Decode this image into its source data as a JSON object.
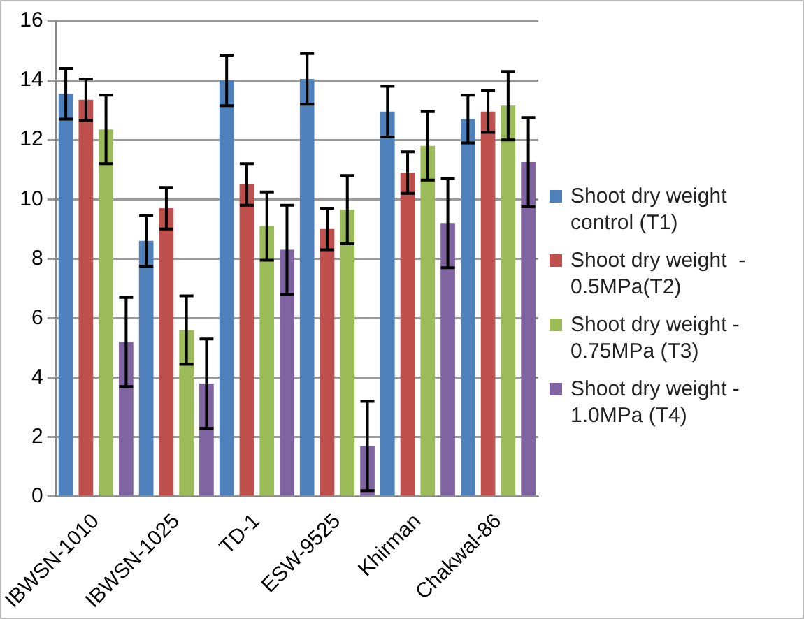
{
  "chart_data": {
    "type": "bar",
    "categories": [
      "IBWSN-1010",
      "IBWSN-1025",
      "TD-1",
      "ESW-9525",
      "Khirman",
      "Chakwal-86"
    ],
    "series": [
      {
        "name": "Shoot dry weight control (T1)",
        "color": "#4f81bd",
        "values": [
          13.55,
          8.6,
          14.0,
          14.05,
          12.95,
          12.7
        ],
        "errors": [
          0.85,
          0.85,
          0.85,
          0.85,
          0.85,
          0.8
        ]
      },
      {
        "name": "Shoot dry weight  - 0.5MPa(T2)",
        "color": "#c0504d",
        "values": [
          13.35,
          9.7,
          10.5,
          9.0,
          10.9,
          12.95
        ],
        "errors": [
          0.7,
          0.7,
          0.7,
          0.7,
          0.7,
          0.7
        ]
      },
      {
        "name": "Shoot dry weight - 0.75MPa (T3)",
        "color": "#9bbb59",
        "values": [
          12.35,
          5.6,
          9.1,
          9.65,
          11.8,
          13.15
        ],
        "errors": [
          1.15,
          1.15,
          1.15,
          1.15,
          1.15,
          1.15
        ]
      },
      {
        "name": "Shoot dry weight - 1.0MPa (T4)",
        "color": "#8064a2",
        "values": [
          5.2,
          3.8,
          8.3,
          1.7,
          9.2,
          11.25
        ],
        "errors": [
          1.5,
          1.5,
          1.5,
          1.5,
          1.5,
          1.5
        ]
      }
    ],
    "ylim": [
      0,
      16
    ],
    "yticks": [
      0,
      2,
      4,
      6,
      8,
      10,
      12,
      14,
      16
    ],
    "grid": "y",
    "legend": "right"
  }
}
